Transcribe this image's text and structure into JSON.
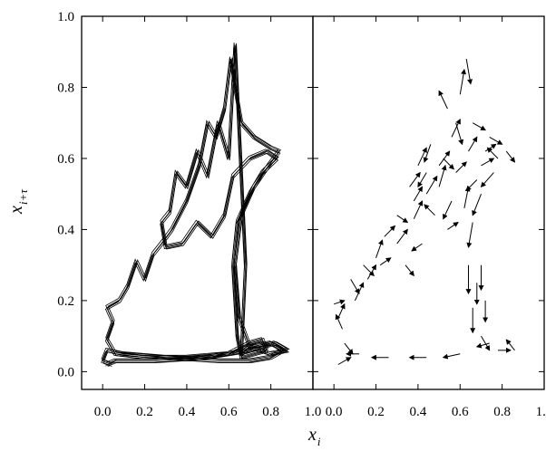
{
  "chart_data": {
    "type": "line",
    "panels": [
      {
        "name": "left-panel",
        "kind": "trajectory",
        "xlim": [
          -0.1,
          1.0
        ],
        "ylim": [
          -0.05,
          1.0
        ]
      },
      {
        "name": "right-panel",
        "kind": "vector-field",
        "xlim": [
          -0.1,
          1.0
        ],
        "ylim": [
          -0.05,
          1.0
        ]
      }
    ],
    "xlabel": {
      "main": "x",
      "sub": "i"
    },
    "ylabel": {
      "main": "x",
      "sub": "i+τ"
    },
    "x_ticks": [
      0.0,
      0.2,
      0.4,
      0.6,
      0.8,
      1.0
    ],
    "x_tick_labels": [
      "0.0",
      "0.2",
      "0.4",
      "0.6",
      "0.8",
      "1.0"
    ],
    "y_ticks": [
      0.0,
      0.2,
      0.4,
      0.6,
      0.8,
      1.0
    ],
    "y_tick_labels": [
      "0.0",
      "0.2",
      "0.4",
      "0.6",
      "0.8",
      "1.0"
    ],
    "grid": false,
    "line_color": "#000000",
    "trajectory_path": [
      [
        0.04,
        0.02
      ],
      [
        0.0,
        0.03
      ],
      [
        0.02,
        0.06
      ],
      [
        0.1,
        0.05
      ],
      [
        0.3,
        0.04
      ],
      [
        0.55,
        0.03
      ],
      [
        0.7,
        0.03
      ],
      [
        0.8,
        0.04
      ],
      [
        0.86,
        0.06
      ],
      [
        0.8,
        0.08
      ],
      [
        0.7,
        0.07
      ],
      [
        0.66,
        0.05
      ],
      [
        0.68,
        0.3
      ],
      [
        0.63,
        0.92
      ],
      [
        0.6,
        0.6
      ],
      [
        0.55,
        0.7
      ],
      [
        0.5,
        0.55
      ],
      [
        0.45,
        0.62
      ],
      [
        0.4,
        0.52
      ],
      [
        0.35,
        0.56
      ],
      [
        0.32,
        0.45
      ],
      [
        0.28,
        0.42
      ],
      [
        0.3,
        0.35
      ],
      [
        0.38,
        0.36
      ],
      [
        0.45,
        0.42
      ],
      [
        0.52,
        0.38
      ],
      [
        0.58,
        0.44
      ],
      [
        0.62,
        0.55
      ],
      [
        0.7,
        0.6
      ],
      [
        0.78,
        0.62
      ],
      [
        0.83,
        0.6
      ],
      [
        0.76,
        0.56
      ],
      [
        0.7,
        0.5
      ],
      [
        0.64,
        0.42
      ],
      [
        0.62,
        0.3
      ],
      [
        0.64,
        0.1
      ],
      [
        0.66,
        0.04
      ],
      [
        0.72,
        0.05
      ],
      [
        0.78,
        0.06
      ],
      [
        0.76,
        0.09
      ],
      [
        0.7,
        0.08
      ],
      [
        0.6,
        0.05
      ],
      [
        0.4,
        0.04
      ],
      [
        0.2,
        0.04
      ],
      [
        0.06,
        0.05
      ],
      [
        0.02,
        0.09
      ],
      [
        0.05,
        0.14
      ],
      [
        0.02,
        0.18
      ],
      [
        0.08,
        0.2
      ],
      [
        0.12,
        0.24
      ],
      [
        0.16,
        0.31
      ],
      [
        0.2,
        0.26
      ],
      [
        0.24,
        0.33
      ],
      [
        0.28,
        0.36
      ],
      [
        0.33,
        0.4
      ],
      [
        0.4,
        0.48
      ],
      [
        0.46,
        0.58
      ],
      [
        0.5,
        0.7
      ],
      [
        0.54,
        0.66
      ],
      [
        0.58,
        0.74
      ],
      [
        0.61,
        0.88
      ],
      [
        0.63,
        0.8
      ],
      [
        0.66,
        0.7
      ],
      [
        0.72,
        0.66
      ],
      [
        0.8,
        0.63
      ],
      [
        0.84,
        0.62
      ],
      [
        0.79,
        0.58
      ],
      [
        0.72,
        0.52
      ],
      [
        0.66,
        0.44
      ],
      [
        0.63,
        0.3
      ],
      [
        0.65,
        0.15
      ],
      [
        0.7,
        0.07
      ],
      [
        0.8,
        0.05
      ],
      [
        0.88,
        0.06
      ],
      [
        0.82,
        0.08
      ],
      [
        0.7,
        0.06
      ],
      [
        0.5,
        0.04
      ],
      [
        0.25,
        0.03
      ],
      [
        0.06,
        0.03
      ],
      [
        0.02,
        0.02
      ]
    ],
    "vector_field": [
      [
        0.02,
        0.02,
        0.06,
        0.02
      ],
      [
        0.05,
        0.08,
        0.04,
        -0.03
      ],
      [
        0.02,
        0.15,
        0.03,
        0.04
      ],
      [
        0.0,
        0.19,
        0.05,
        0.01
      ],
      [
        0.1,
        0.2,
        0.04,
        0.05
      ],
      [
        0.16,
        0.26,
        0.04,
        0.04
      ],
      [
        0.22,
        0.3,
        0.05,
        0.02
      ],
      [
        0.3,
        0.36,
        0.05,
        0.04
      ],
      [
        0.38,
        0.43,
        0.04,
        0.05
      ],
      [
        0.44,
        0.5,
        0.05,
        0.05
      ],
      [
        0.5,
        0.58,
        0.05,
        0.04
      ],
      [
        0.56,
        0.66,
        0.04,
        0.05
      ],
      [
        0.6,
        0.78,
        0.02,
        0.07
      ],
      [
        0.63,
        0.88,
        0.02,
        -0.07
      ],
      [
        0.66,
        0.7,
        0.06,
        -0.02
      ],
      [
        0.74,
        0.66,
        0.06,
        -0.02
      ],
      [
        0.82,
        0.62,
        0.04,
        -0.03
      ],
      [
        0.76,
        0.56,
        -0.06,
        -0.04
      ],
      [
        0.7,
        0.5,
        -0.04,
        -0.06
      ],
      [
        0.66,
        0.42,
        -0.02,
        -0.07
      ],
      [
        0.64,
        0.3,
        0.0,
        -0.08
      ],
      [
        0.66,
        0.18,
        0.0,
        -0.07
      ],
      [
        0.7,
        0.1,
        0.04,
        -0.04
      ],
      [
        0.78,
        0.06,
        0.06,
        0.0
      ],
      [
        0.86,
        0.06,
        -0.04,
        0.03
      ],
      [
        0.74,
        0.08,
        -0.06,
        -0.01
      ],
      [
        0.6,
        0.05,
        -0.08,
        -0.01
      ],
      [
        0.44,
        0.04,
        -0.08,
        0.0
      ],
      [
        0.26,
        0.04,
        -0.08,
        0.0
      ],
      [
        0.12,
        0.05,
        -0.06,
        0.0
      ],
      [
        0.3,
        0.44,
        0.05,
        -0.02
      ],
      [
        0.36,
        0.52,
        0.05,
        0.04
      ],
      [
        0.4,
        0.58,
        0.04,
        0.05
      ],
      [
        0.46,
        0.64,
        -0.03,
        -0.05
      ],
      [
        0.52,
        0.6,
        0.05,
        -0.03
      ],
      [
        0.58,
        0.56,
        0.05,
        0.03
      ],
      [
        0.48,
        0.44,
        -0.05,
        0.03
      ],
      [
        0.54,
        0.4,
        0.05,
        0.02
      ],
      [
        0.42,
        0.36,
        -0.05,
        -0.02
      ],
      [
        0.34,
        0.3,
        0.04,
        -0.03
      ],
      [
        0.62,
        0.46,
        0.02,
        0.06
      ],
      [
        0.7,
        0.58,
        0.06,
        0.02
      ],
      [
        0.78,
        0.6,
        -0.05,
        0.03
      ],
      [
        0.56,
        0.48,
        -0.04,
        -0.05
      ],
      [
        0.5,
        0.52,
        0.03,
        0.06
      ],
      [
        0.44,
        0.56,
        -0.04,
        -0.04
      ],
      [
        0.38,
        0.48,
        0.04,
        0.04
      ],
      [
        0.58,
        0.7,
        0.03,
        -0.06
      ],
      [
        0.54,
        0.74,
        -0.04,
        0.05
      ],
      [
        0.64,
        0.62,
        0.04,
        0.04
      ],
      [
        0.72,
        0.62,
        0.05,
        0.02
      ],
      [
        0.68,
        0.54,
        -0.05,
        -0.03
      ],
      [
        0.7,
        0.3,
        0.0,
        -0.07
      ],
      [
        0.72,
        0.2,
        0.0,
        -0.06
      ],
      [
        0.68,
        0.25,
        0.0,
        -0.06
      ],
      [
        0.24,
        0.38,
        0.05,
        0.03
      ],
      [
        0.2,
        0.32,
        0.03,
        0.05
      ],
      [
        0.14,
        0.3,
        0.05,
        -0.03
      ],
      [
        0.08,
        0.26,
        0.04,
        -0.04
      ],
      [
        0.04,
        0.12,
        -0.03,
        0.04
      ]
    ]
  }
}
